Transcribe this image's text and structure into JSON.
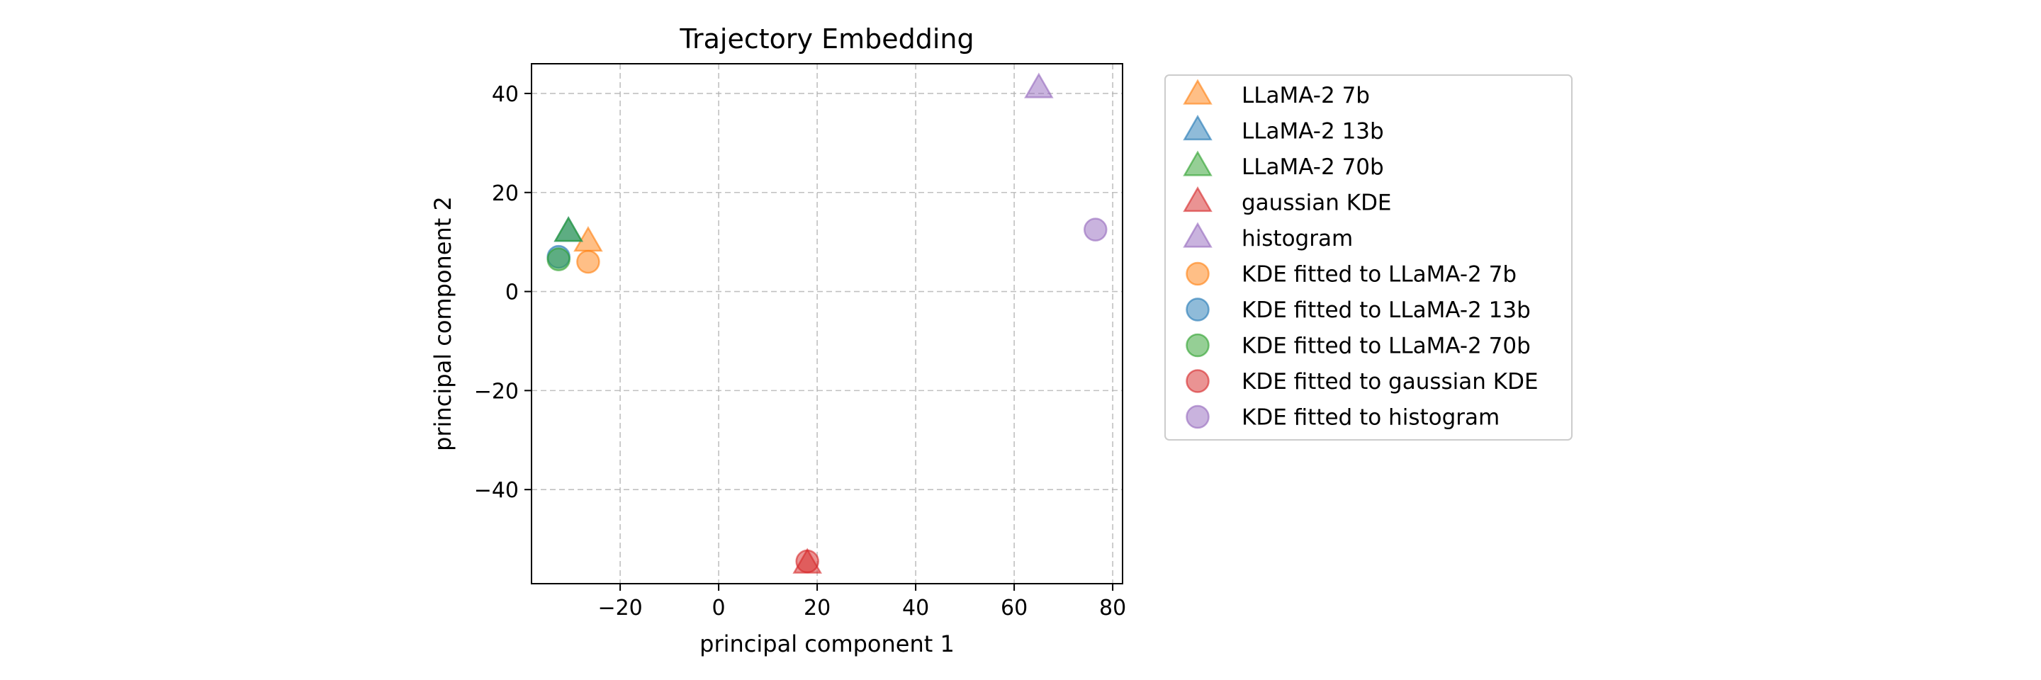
{
  "chart_data": {
    "type": "scatter",
    "title": "Trajectory Embedding",
    "xlabel": "principal component 1",
    "ylabel": "principal component 2",
    "xlim": [
      -38,
      82
    ],
    "ylim": [
      -59,
      46
    ],
    "xticks": [
      -20,
      0,
      20,
      40,
      60,
      80
    ],
    "yticks": [
      -40,
      -20,
      0,
      20,
      40
    ],
    "grid": true,
    "legend_placement": "outside-right-top",
    "series": [
      {
        "name": "LLaMA-2 7b",
        "marker": "triangle",
        "color": "#ff7f0e",
        "points": [
          {
            "x": -26.5,
            "y": 10.0
          }
        ]
      },
      {
        "name": "LLaMA-2 13b",
        "marker": "triangle",
        "color": "#1f77b4",
        "points": [
          {
            "x": -30.5,
            "y": 12.0
          }
        ]
      },
      {
        "name": "LLaMA-2 70b",
        "marker": "triangle",
        "color": "#2ca02c",
        "points": [
          {
            "x": -30.5,
            "y": 12.0
          }
        ]
      },
      {
        "name": "gaussian KDE",
        "marker": "triangle",
        "color": "#d62728",
        "points": [
          {
            "x": 18.0,
            "y": -55.0
          }
        ]
      },
      {
        "name": "histogram",
        "marker": "triangle",
        "color": "#9467bd",
        "points": [
          {
            "x": 65.0,
            "y": 41.0
          }
        ]
      },
      {
        "name": "KDE fitted to LLaMA-2 7b",
        "marker": "circle",
        "color": "#ff7f0e",
        "points": [
          {
            "x": -26.5,
            "y": 6.0
          }
        ]
      },
      {
        "name": "KDE fitted to LLaMA-2 13b",
        "marker": "circle",
        "color": "#1f77b4",
        "points": [
          {
            "x": -32.5,
            "y": 7.0
          }
        ]
      },
      {
        "name": "KDE fitted to LLaMA-2 70b",
        "marker": "circle",
        "color": "#2ca02c",
        "points": [
          {
            "x": -32.5,
            "y": 6.5
          }
        ]
      },
      {
        "name": "KDE fitted to gaussian KDE",
        "marker": "circle",
        "color": "#d62728",
        "points": [
          {
            "x": 18.0,
            "y": -54.5
          }
        ]
      },
      {
        "name": "KDE fitted to histogram",
        "marker": "circle",
        "color": "#9467bd",
        "points": [
          {
            "x": 76.5,
            "y": 12.5
          }
        ]
      }
    ]
  }
}
